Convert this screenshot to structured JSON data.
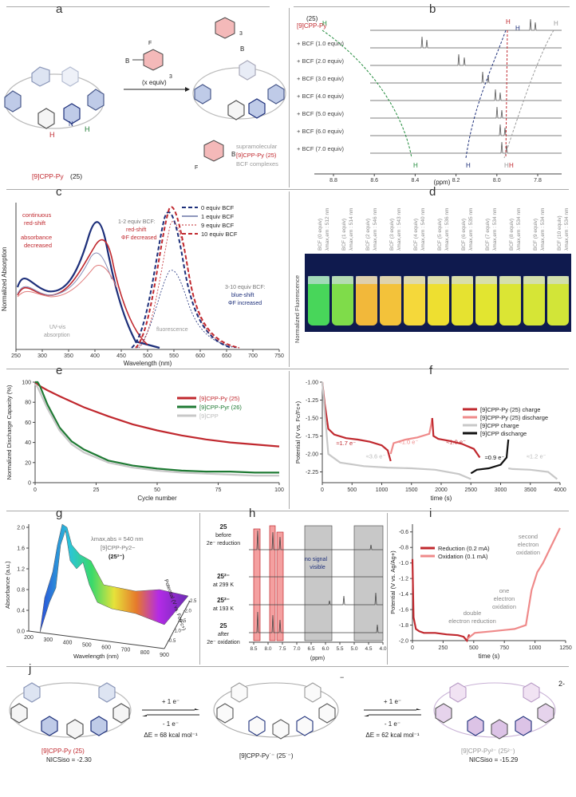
{
  "panel_labels": [
    "a",
    "b",
    "c",
    "d",
    "e",
    "f",
    "g",
    "h",
    "i",
    "j"
  ],
  "panel_a": {
    "reagent_repeat": "3",
    "equiv_label": "(x equiv)",
    "compound_label": "[9]CPP-Py",
    "compound_number": "(25)",
    "complex_lines": [
      "supramolecular",
      "[9]CPP-Py (25)",
      "BCF complexes"
    ],
    "h_labels": [
      "H",
      "H"
    ],
    "boron": "B",
    "fluorine": "F",
    "nitrogen": "N"
  },
  "panel_b": {
    "header_top": "(25)",
    "header_bottom": "[9]CPP-Py",
    "traces": [
      "+ BCF (1.0 equiv)",
      "+ BCF (2.0 equiv)",
      "+ BCF (3.0 equiv)",
      "+ BCF (4.0 equiv)",
      "+ BCF (5.0 equiv)",
      "+ BCF (6.0 equiv)",
      "+ BCF (7.0 equiv)"
    ],
    "xticks": [
      "8.8",
      "8.6",
      "8.4",
      "8.2",
      "8.0",
      "7.8"
    ],
    "xlabel": "(ppm)",
    "peak_label": "H",
    "colors": {
      "green": "#1f8a3a",
      "blue": "#1d2f7a",
      "red": "#c0282e",
      "grey": "#9a9a9a"
    }
  },
  "panel_c": {
    "ylabel": "Normalized Absorption",
    "xlabel": "Wavelength (nm)",
    "xticks": [
      "250",
      "300",
      "350",
      "400",
      "450",
      "500",
      "550",
      "600",
      "650",
      "700",
      "750"
    ],
    "legend": [
      "0 equiv BCF",
      "1 equiv BCF",
      "9 equiv BCF",
      "10 equiv BCF"
    ],
    "annotations": {
      "a1": "continuous",
      "a2": "red-shift",
      "a3": "absorbance",
      "a4": "decreased",
      "b1": "1-2 equiv BCF:",
      "b2": "red-shift",
      "b3": "ΦF decreased",
      "c1": "3-10 equiv BCF:",
      "c2": "blue-shift",
      "c3": "ΦF increased",
      "uv1": "UV-vis",
      "uv2": "absorption",
      "fl": "fluorescence"
    }
  },
  "panel_d": {
    "ylabel": "Normalized Fluorescence",
    "vials": [
      {
        "label": "BCF (0 equiv)",
        "lambda": "λmax,em : 512 nm",
        "color": "#48d65a"
      },
      {
        "label": "BCF (1 equiv)",
        "lambda": "λmax,em : 514 nm",
        "color": "#7fdc4a"
      },
      {
        "label": "BCF (2 equiv)",
        "lambda": "λmax,em : 546 nm",
        "color": "#f2b83a"
      },
      {
        "label": "BCF (3 equiv)",
        "lambda": "λmax,em : 543 nm",
        "color": "#f3c23a"
      },
      {
        "label": "BCF (4 equiv)",
        "lambda": "λmax,em : 540 nm",
        "color": "#f5d83a"
      },
      {
        "label": "BCF (5 equiv)",
        "lambda": "λmax,em : 536 nm",
        "color": "#eedf30"
      },
      {
        "label": "BCF (6 equiv)",
        "lambda": "λmax,em : 535 nm",
        "color": "#e6e230"
      },
      {
        "label": "BCF (7 equiv)",
        "lambda": "λmax,em : 534 nm",
        "color": "#e2e530"
      },
      {
        "label": "BCF (8 equiv)",
        "lambda": "λmax,em : 534 nm",
        "color": "#dbe534"
      },
      {
        "label": "BCF (9 equiv)",
        "lambda": "λmax,em : 534 nm",
        "color": "#d6e536"
      },
      {
        "label": "BCF (10 equiv)",
        "lambda": "λmax,em : 534 nm",
        "color": "#d2e538"
      }
    ]
  },
  "chart_data": [
    {
      "id": "e",
      "type": "line",
      "ylabel": "Normalized Discharge Capacity (%)",
      "xlabel": "Cycle number",
      "xlim": [
        0,
        100
      ],
      "ylim": [
        0,
        100
      ],
      "xticks": [
        "0",
        "25",
        "50",
        "75",
        "100"
      ],
      "yticks": [
        "0",
        "20",
        "40",
        "60",
        "80",
        "100"
      ],
      "legend_placement": "top-right",
      "series": [
        {
          "name": "[9]CPP-Py (25)",
          "color": "#c0282e",
          "x": [
            0,
            1,
            2,
            5,
            10,
            20,
            30,
            40,
            50,
            60,
            70,
            80,
            90,
            100
          ],
          "y": [
            100,
            98,
            96,
            92,
            86,
            75,
            66,
            58,
            52,
            47,
            43,
            40,
            38,
            36
          ]
        },
        {
          "name": "[9]CPP-Pyr (26)",
          "color": "#1f7a34",
          "x": [
            0,
            1,
            2,
            5,
            10,
            15,
            20,
            30,
            40,
            50,
            60,
            70,
            80,
            90,
            100
          ],
          "y": [
            100,
            100,
            96,
            78,
            55,
            41,
            33,
            22,
            17,
            14,
            12,
            11,
            11,
            10,
            10
          ]
        },
        {
          "name": "[9]CPP",
          "color": "#c8c8c8",
          "x": [
            0,
            1,
            2,
            5,
            10,
            15,
            20,
            30,
            40,
            50,
            60,
            70,
            80,
            90,
            100
          ],
          "y": [
            98,
            95,
            90,
            74,
            52,
            38,
            30,
            20,
            15,
            12,
            10,
            9,
            8,
            7,
            7
          ]
        }
      ]
    },
    {
      "id": "f",
      "type": "line",
      "ylabel": "Potential (V vs. Fc/Fc+)",
      "xlabel": "time (s)",
      "xlim": [
        0,
        4000
      ],
      "ylim": [
        -2.4,
        -1.0
      ],
      "xticks": [
        "0",
        "500",
        "1000",
        "1500",
        "2000",
        "2500",
        "3000",
        "3500",
        "4000"
      ],
      "yticks": [
        "-1.00",
        "-1.25",
        "-1.50",
        "-1.75",
        "-2.00",
        "-2.25"
      ],
      "legend_placement": "right",
      "annotations": [
        "≈1.7 e⁻",
        "≈1.0 e⁻",
        "≈1.0 e⁻",
        "≈3.6 e⁻",
        "≈0.9 e⁻",
        "≈1.2 e⁻"
      ],
      "series": [
        {
          "name": "[9]CPP-Py (25) charge",
          "color": "#c0282e",
          "x": [
            0,
            40,
            100,
            200,
            400,
            600,
            800,
            1000,
            1100,
            1150
          ],
          "y": [
            -1.0,
            -1.3,
            -1.65,
            -1.73,
            -1.78,
            -1.8,
            -1.83,
            -1.88,
            -1.95,
            -2.1
          ]
        },
        {
          "name": "[9]CPP-Py (25) discharge",
          "color": "#ef8a8a",
          "x": [
            1150,
            1200,
            1400,
            1600,
            1800,
            1830,
            1850
          ],
          "y": [
            -2.0,
            -1.85,
            -1.8,
            -1.77,
            -1.72,
            -1.6,
            -1.5
          ]
        },
        {
          "name": "[9]CPP-Py charge part 2",
          "color": "#c0282e",
          "x": [
            1850,
            1870,
            1950,
            2150,
            2350,
            2550,
            2650
          ],
          "y": [
            -1.5,
            -1.75,
            -1.79,
            -1.82,
            -1.86,
            -1.93,
            -2.05
          ]
        },
        {
          "name": "[9]CPP charge",
          "color": "#c8c8c8",
          "x": [
            0,
            100,
            300,
            700,
            1100,
            1500,
            1900,
            2300,
            2500
          ],
          "y": [
            -1.0,
            -2.0,
            -2.12,
            -2.17,
            -2.19,
            -2.2,
            -2.22,
            -2.28,
            -2.35
          ]
        },
        {
          "name": "[9]CPP discharge",
          "color": "#111111",
          "x": [
            2500,
            2600,
            2800,
            3000,
            3100,
            3130
          ],
          "y": [
            -2.27,
            -2.22,
            -2.2,
            -2.15,
            -2.05,
            -1.8
          ]
        },
        {
          "name": "[9]CPP charge part 2",
          "color": "#c8c8c8",
          "x": [
            3130,
            3200,
            3500,
            3800,
            3950
          ],
          "y": [
            -2.2,
            -2.21,
            -2.22,
            -2.25,
            -2.35
          ]
        }
      ]
    },
    {
      "id": "i",
      "type": "line",
      "ylabel": "Potential (V vs. Ag/Ag+)",
      "xlabel": "time (s)",
      "xlim": [
        0,
        1350
      ],
      "ylim": [
        -2.0,
        -0.5
      ],
      "xticks": [
        "0",
        "250",
        "500",
        "750",
        "1000",
        "1250"
      ],
      "yticks": [
        "-0.6",
        "-0.8",
        "-1.0",
        "-1.2",
        "-1.4",
        "-1.6",
        "-1.8",
        "-2.0"
      ],
      "legend": [
        "Reduction (0.2 mA)",
        "Oxidation (0.1 mA)"
      ],
      "annotations": [
        "double",
        "electron reduction",
        "one",
        "electron",
        "oxidation",
        "second",
        "electron",
        "oxidation"
      ],
      "series": [
        {
          "name": "Reduction (0.2 mA)",
          "color": "#c0282e",
          "x": [
            0,
            10,
            30,
            60,
            100,
            200,
            300,
            400,
            450,
            480,
            500
          ],
          "y": [
            -0.95,
            -1.7,
            -1.85,
            -1.88,
            -1.9,
            -1.9,
            -1.92,
            -1.93,
            -1.95,
            -2.0,
            -1.92
          ]
        },
        {
          "name": "Oxidation (0.1 mA)",
          "color": "#ef8a8a",
          "x": [
            480,
            550,
            700,
            900,
            1000,
            1050,
            1100,
            1150,
            1200,
            1250,
            1300
          ],
          "y": [
            -1.98,
            -1.9,
            -1.88,
            -1.85,
            -1.8,
            -1.35,
            -1.12,
            -1.0,
            -0.85,
            -0.7,
            -0.55
          ]
        }
      ]
    }
  ],
  "panel_g": {
    "ylabel": "Absorbance (a.u.)",
    "xlabel": "Wavelength (nm)",
    "zlabel": "Potential (V vs. Fc/Fc+)",
    "xticks": [
      "200",
      "300",
      "400",
      "500",
      "600",
      "700",
      "800",
      "900"
    ],
    "yticks": [
      "0.0",
      "0.4",
      "0.8",
      "1.2",
      "1.6",
      "2.0"
    ],
    "zticks": [
      "-0.5",
      "-1.0",
      "-1.5",
      "-2.0",
      "-2.5"
    ],
    "note1": "λmax,abs = 540 nm",
    "note2": "[9]CPP-Py2−",
    "note3": "(25²⁻)"
  },
  "panel_h": {
    "rows": [
      {
        "top": "25",
        "bottom": "before",
        "extra": "2e⁻ reduction"
      },
      {
        "top": "25²⁻",
        "bottom": "at 299 K",
        "extra": ""
      },
      {
        "top": "25²⁻",
        "bottom": "at 193 K",
        "extra": ""
      },
      {
        "top": "25",
        "bottom": "after",
        "extra": "2e⁻ oxidation"
      }
    ],
    "xticks": [
      "8.5",
      "8.0",
      "7.5",
      "7.0",
      "6.5",
      "6.0",
      "5.5",
      "5.0",
      "4.5",
      "4.0"
    ],
    "xlabel": "(ppm)",
    "note1": "no signal",
    "note2": "visible"
  },
  "panel_j": {
    "left_name": "[9]CPP-Py (25)",
    "left_nics": "NICSiso = -2.30",
    "mid_name": "[9]CPP-Py˙⁻ (25˙⁻)",
    "right_name": "[9]CPP-Py²⁻ (25²⁻)",
    "right_nics": "NICSiso = -15.29",
    "arrow1_top": "+ 1 e⁻",
    "arrow1_bottom": "- 1 e⁻",
    "arrow1_energy": "ΔE = 68 kcal mol⁻¹",
    "arrow2_top": "+ 1 e⁻",
    "arrow2_bottom": "- 1 e⁻",
    "arrow2_energy": "ΔE = 62 kcal mol⁻¹",
    "charge_mid": "−",
    "charge_right": "2-"
  }
}
